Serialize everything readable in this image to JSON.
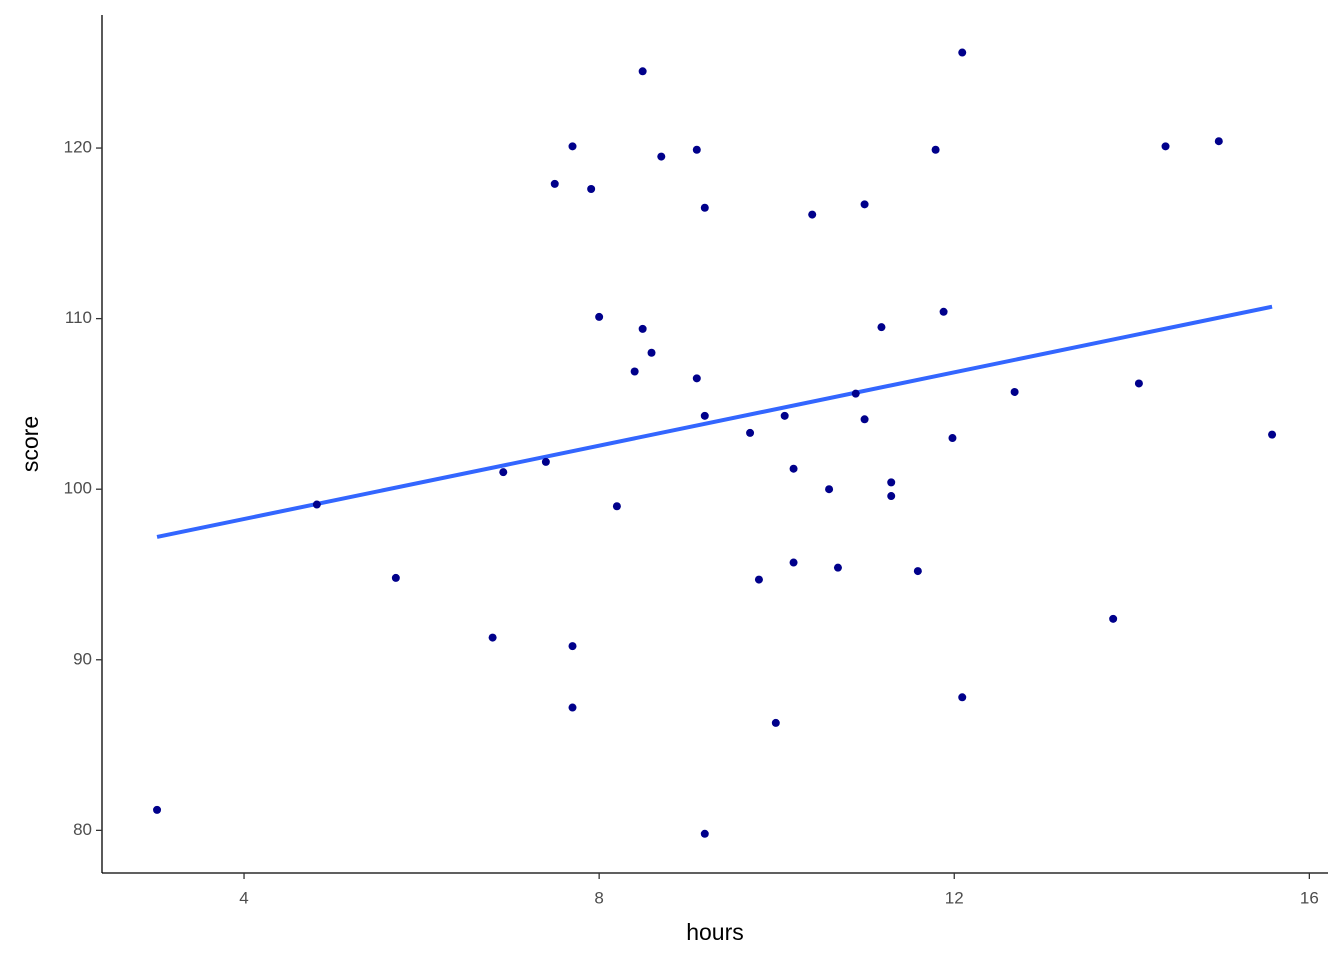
{
  "chart_data": {
    "type": "scatter",
    "x_label": "hours",
    "y_label": "score",
    "x": [
      3.02,
      4.82,
      5.71,
      6.8,
      6.92,
      7.4,
      7.5,
      7.7,
      7.7,
      7.7,
      7.91,
      8.0,
      8.2,
      8.4,
      8.49,
      8.49,
      8.59,
      8.7,
      9.1,
      9.1,
      9.19,
      9.19,
      9.19,
      9.7,
      9.8,
      9.99,
      10.09,
      10.19,
      10.19,
      10.4,
      10.59,
      10.69,
      10.89,
      10.99,
      10.99,
      11.18,
      11.29,
      11.29,
      11.59,
      11.79,
      11.88,
      11.98,
      12.09,
      12.09,
      12.68,
      13.79,
      14.08,
      14.38,
      14.98,
      15.58
    ],
    "values": [
      81.2,
      99.1,
      94.8,
      91.3,
      101.0,
      101.6,
      117.9,
      120.1,
      90.8,
      87.2,
      117.6,
      110.1,
      99.0,
      106.9,
      124.5,
      109.4,
      108.0,
      119.5,
      106.5,
      119.9,
      116.5,
      104.3,
      79.8,
      103.3,
      94.7,
      86.3,
      104.3,
      101.2,
      95.7,
      116.1,
      100.0,
      95.4,
      105.6,
      116.7,
      104.1,
      109.5,
      100.4,
      99.6,
      95.2,
      119.9,
      110.4,
      103.0,
      125.6,
      87.8,
      105.7,
      92.4,
      106.2,
      120.1,
      120.4,
      103.2
    ],
    "color": "#00008b",
    "trend_line": {
      "x": [
        3.02,
        15.58
      ],
      "values": [
        97.2,
        110.7
      ],
      "color": "#3366ff"
    },
    "xlim": [
      2.4,
      16.21
    ],
    "xticks": [
      4,
      8,
      12,
      16
    ],
    "ylim": [
      77.5,
      127.8
    ],
    "yticks": [
      80,
      90,
      100,
      110,
      120
    ],
    "grid": false
  }
}
